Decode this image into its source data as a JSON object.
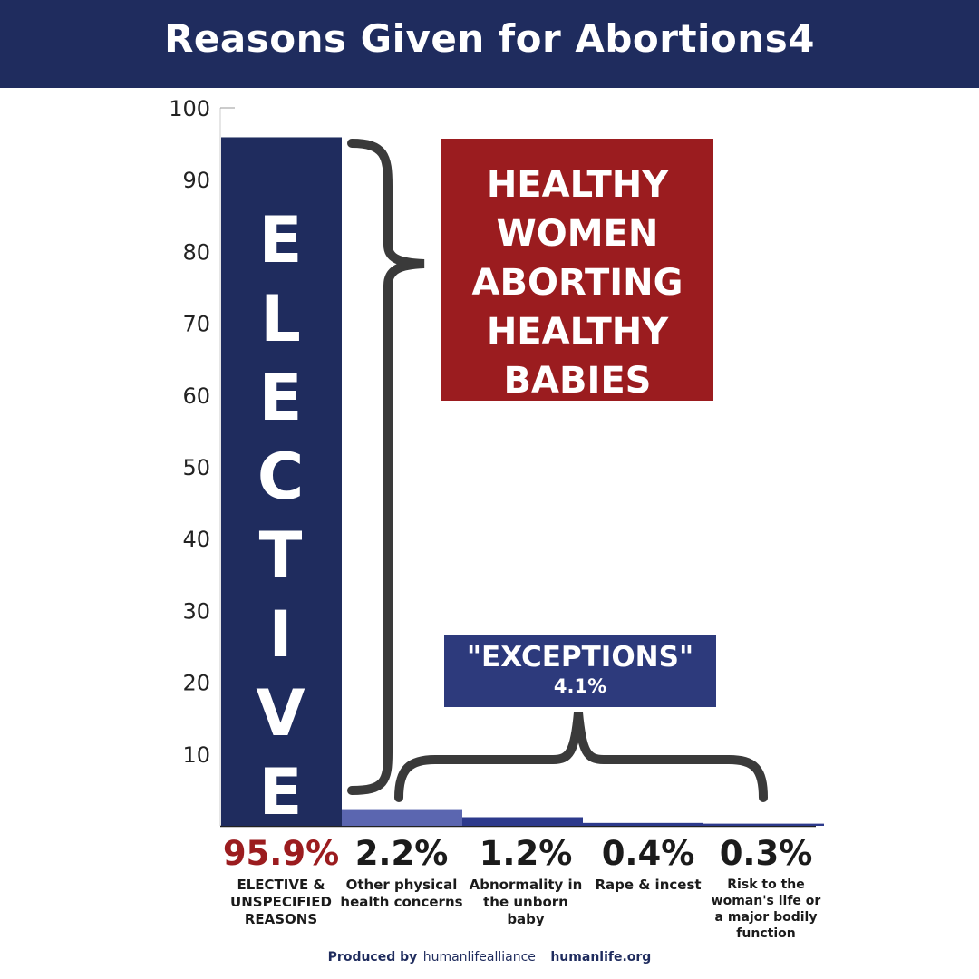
{
  "header": {
    "title": "Reasons Given for Abortions4"
  },
  "chart_data": {
    "type": "bar",
    "categories": [
      "95.9%",
      "2.2%",
      "1.2%",
      "0.4%",
      "0.3%"
    ],
    "values": [
      95.9,
      2.2,
      1.2,
      0.4,
      0.3
    ],
    "category_labels": [
      "ELECTIVE & UNSPECIFIED REASONS",
      "Other physical health concerns",
      "Abnormality in the unborn baby",
      "Rape & incest",
      "Risk to the woman's life or a major bodily function"
    ],
    "colors": [
      "#1f2c5e",
      "#5b66b0",
      "#2d3a8c",
      "#2d3a8c",
      "#2d3a8c"
    ],
    "ylim": [
      0,
      100
    ],
    "yticks": [
      10,
      20,
      30,
      40,
      50,
      60,
      70,
      80,
      90,
      100
    ],
    "grid": false,
    "bar_text": "E\nL\nE\nC\nT\nI\nV\nE",
    "callout": "HEALTHY\nWOMEN\nABORTING\nHEALTHY\nBABIES",
    "exceptions": {
      "title": "\"EXCEPTIONS\"",
      "total": "4.1%"
    }
  },
  "footer": {
    "produced_by": "Produced by",
    "brand": "humanlifealliance",
    "site": "humanlife.org"
  }
}
